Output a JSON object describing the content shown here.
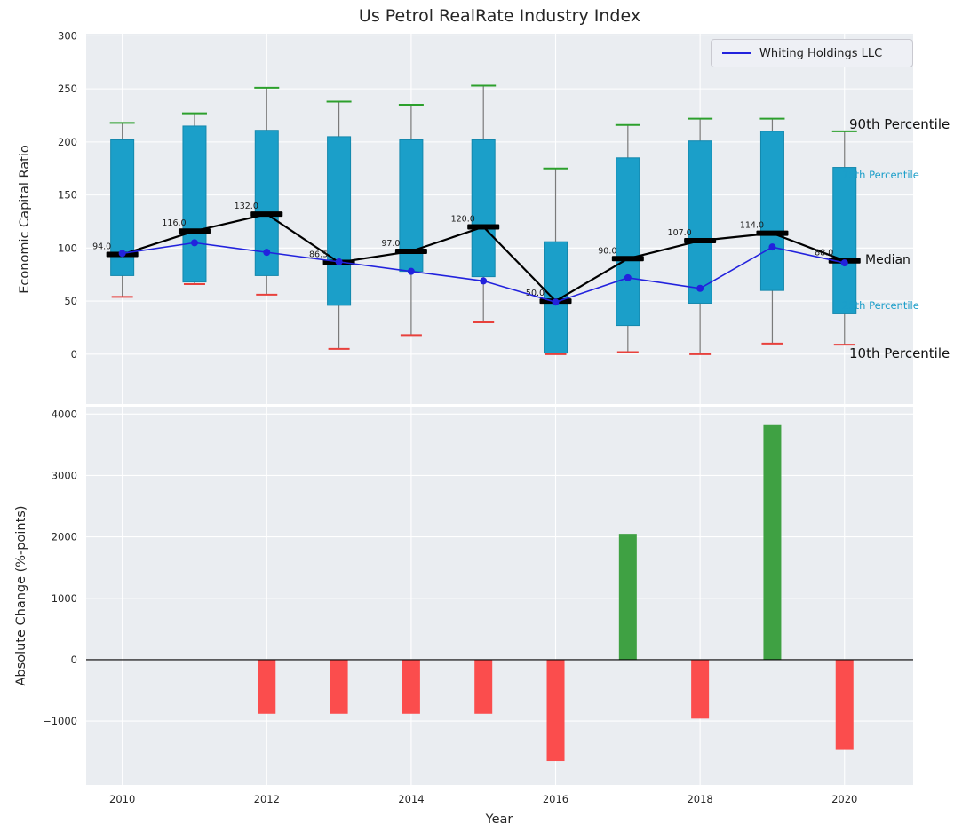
{
  "title": "Us Petrol RealRate Industry Index",
  "legend": {
    "label": "Whiting Holdings LLC",
    "line_color": "#2222dd"
  },
  "right_labels": {
    "p90": {
      "text": "90th Percentile",
      "color": "#111111"
    },
    "p75": {
      "text": "75th Percentile",
      "color": "#1b9ec9"
    },
    "median": {
      "text": "Median",
      "color": "#111111"
    },
    "p25": {
      "text": "25th Percentile",
      "color": "#1b9ec9"
    },
    "p10": {
      "text": "10th Percentile",
      "color": "#111111"
    }
  },
  "chart_data": [
    {
      "type": "boxplot",
      "title": "Us Petrol RealRate Industry Index",
      "ylabel": "Economic Capital Ratio",
      "ylim": [
        -47,
        302
      ],
      "yticks": [
        0,
        50,
        100,
        150,
        200,
        250,
        300
      ],
      "xlim": [
        2009.5,
        2020.95
      ],
      "years": [
        2010,
        2011,
        2012,
        2013,
        2014,
        2015,
        2016,
        2017,
        2018,
        2019,
        2020
      ],
      "p90": [
        218,
        227,
        251,
        238,
        235,
        253,
        175,
        216,
        222,
        222,
        210
      ],
      "p75": [
        202,
        215,
        211,
        205,
        202,
        202,
        106,
        185,
        201,
        210,
        176
      ],
      "median": [
        94.0,
        116.0,
        132.0,
        86.5,
        97.0,
        120.0,
        50.0,
        90.0,
        107.0,
        114.0,
        88.0
      ],
      "p25": [
        74,
        68,
        74,
        46,
        78,
        73,
        1,
        27,
        48,
        60,
        38
      ],
      "p10": [
        54,
        66,
        56,
        5,
        18,
        30,
        0,
        2,
        0,
        10,
        9
      ],
      "median_labels": [
        "94.0",
        "116.0",
        "132.0",
        "86.5",
        "97.0",
        "120.0",
        "50.0",
        "90.0",
        "107.0",
        "114.0",
        "88.0"
      ],
      "series": [
        {
          "name": "Whiting Holdings LLC",
          "values": [
            95,
            105,
            96,
            87,
            78,
            69,
            49,
            72,
            62,
            101,
            86
          ],
          "color": "#2222dd"
        }
      ],
      "colors": {
        "bg": "#eaedf1",
        "box": "#1b9fc9",
        "box_edge": "#1488ad",
        "cap_top": "#2ca02c",
        "cap_bottom": "#e8413c",
        "median": "#000000",
        "whisker": "#7a7a7a"
      },
      "legend_position": "upper right",
      "grid": true
    },
    {
      "type": "bar",
      "ylabel": "Absolute Change (%-points)",
      "xlabel": "Year",
      "ylim": [
        -2040,
        4120
      ],
      "yticks": [
        -1000,
        0,
        1000,
        2000,
        3000,
        4000
      ],
      "xticks": [
        2010,
        2012,
        2014,
        2016,
        2018,
        2020
      ],
      "years": [
        2010,
        2011,
        2012,
        2013,
        2014,
        2015,
        2016,
        2017,
        2018,
        2019,
        2020
      ],
      "values": [
        0,
        0,
        -880,
        -880,
        -880,
        -880,
        -1650,
        2050,
        -960,
        3820,
        -1470
      ],
      "colors": {
        "positive": "#3fa143",
        "negative": "#fb4d4d",
        "zero_line": "#000000"
      },
      "grid": true
    }
  ]
}
